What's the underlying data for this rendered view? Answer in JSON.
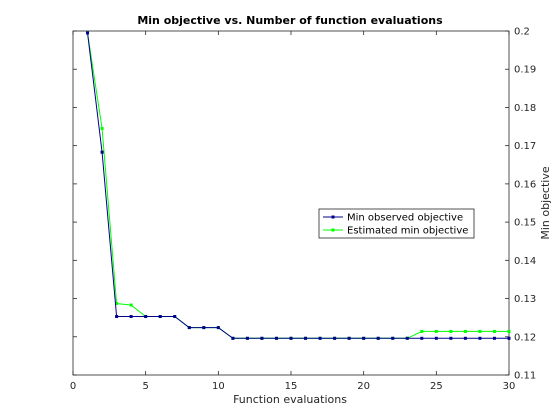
{
  "chart_data": {
    "type": "line",
    "title": "Min objective vs. Number of function evaluations",
    "xlabel": "Function evaluations",
    "ylabel": "Min objective",
    "xlim": [
      0,
      30
    ],
    "ylim": [
      0.11,
      0.2
    ],
    "x_ticks": [
      0,
      5,
      10,
      15,
      20,
      25,
      30
    ],
    "y_ticks": [
      0.11,
      0.12,
      0.13,
      0.14,
      0.15,
      0.16,
      0.17,
      0.18,
      0.19,
      0.2
    ],
    "y_axis_side": "right",
    "grid": false,
    "legend_position": "right-center",
    "x": [
      1,
      2,
      3,
      4,
      5,
      6,
      7,
      8,
      9,
      10,
      11,
      12,
      13,
      14,
      15,
      16,
      17,
      18,
      19,
      20,
      21,
      22,
      23,
      24,
      25,
      26,
      27,
      28,
      29,
      30
    ],
    "series": [
      {
        "name": "Min observed objective",
        "color": "#00008b",
        "values": [
          0.1995,
          0.1683,
          0.1253,
          0.1253,
          0.1253,
          0.1253,
          0.1253,
          0.1224,
          0.1224,
          0.1224,
          0.1196,
          0.1196,
          0.1196,
          0.1196,
          0.1196,
          0.1196,
          0.1196,
          0.1196,
          0.1196,
          0.1196,
          0.1196,
          0.1196,
          0.1196,
          0.1196,
          0.1196,
          0.1196,
          0.1196,
          0.1196,
          0.1196,
          0.1196
        ]
      },
      {
        "name": "Estimated min objective",
        "color": "#00ff00",
        "values": [
          0.1995,
          0.1745,
          0.1287,
          0.1283,
          0.1253,
          0.1253,
          0.1253,
          0.1224,
          0.1224,
          0.1224,
          0.1196,
          0.1196,
          0.1196,
          0.1196,
          0.1196,
          0.1196,
          0.1196,
          0.1196,
          0.1196,
          0.1196,
          0.1196,
          0.1196,
          0.1196,
          0.1214,
          0.1214,
          0.1214,
          0.1214,
          0.1214,
          0.1214,
          0.1214
        ]
      }
    ]
  }
}
